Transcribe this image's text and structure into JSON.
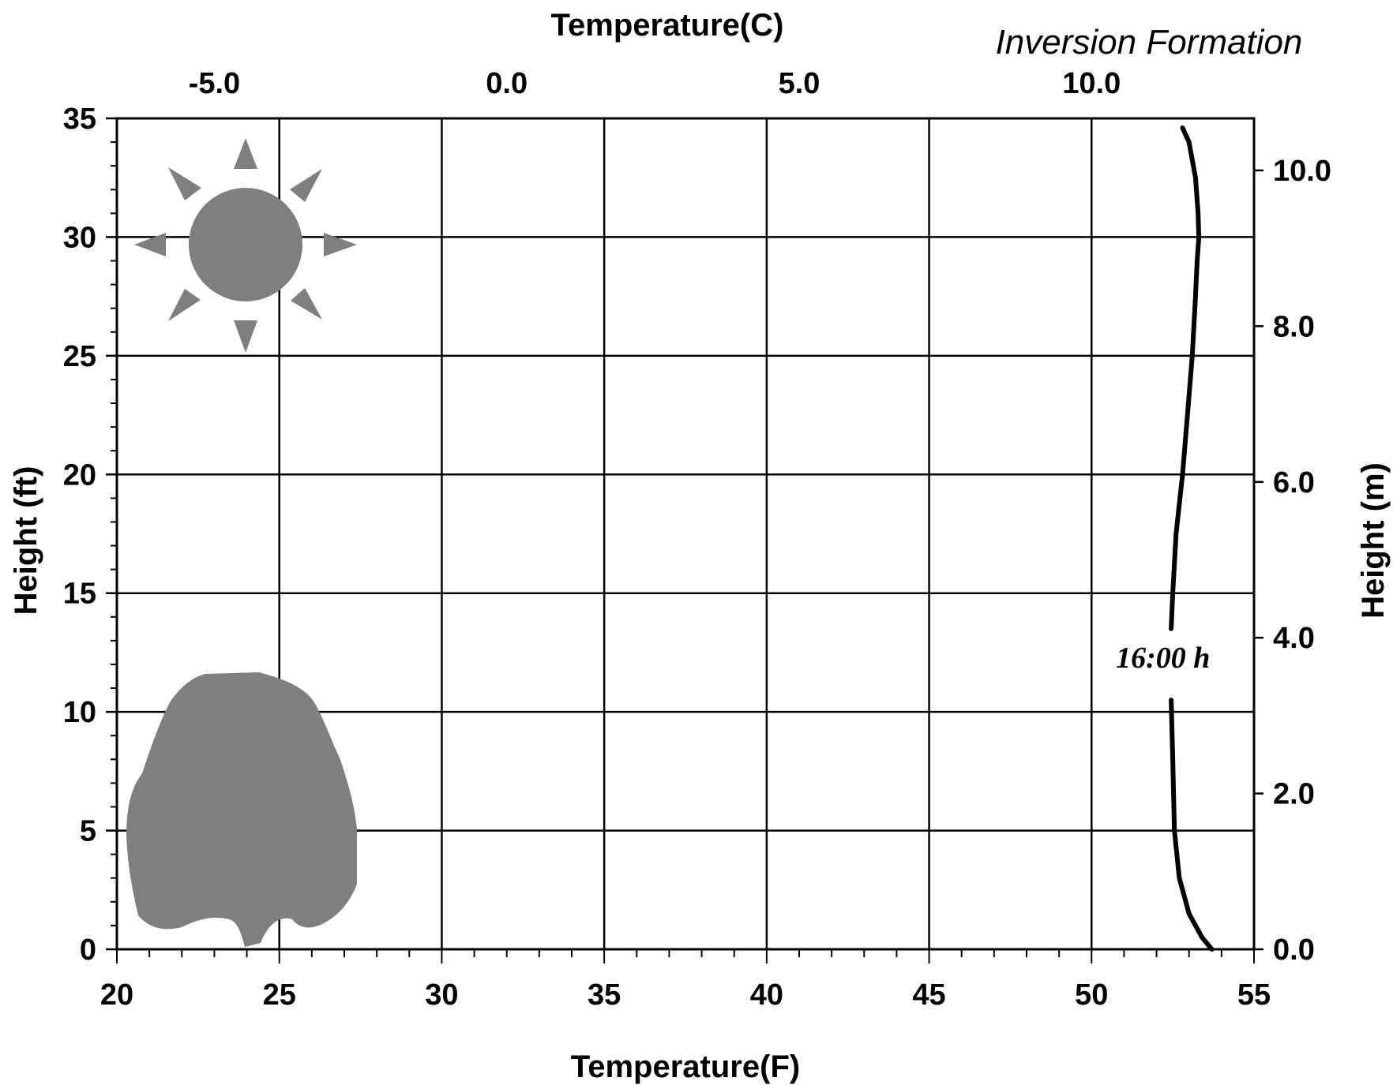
{
  "chart_data": {
    "type": "line",
    "title": "Inversion Formation",
    "xlabel": "Temperature(F)",
    "x2label": "Temperature(C)",
    "ylabel": "Height (ft)",
    "y2label": "Height (m)",
    "xlim": [
      20,
      55
    ],
    "ylim": [
      0,
      35
    ],
    "x_ticks": [
      "20",
      "25",
      "30",
      "35",
      "40",
      "45",
      "50",
      "55"
    ],
    "y_ticks": [
      "0",
      "5",
      "10",
      "15",
      "20",
      "25",
      "30",
      "35"
    ],
    "x2_ticks": [
      {
        "value": -5.0,
        "label": "-5.0"
      },
      {
        "value": 0.0,
        "label": "0.0"
      },
      {
        "value": 5.0,
        "label": "5.0"
      },
      {
        "value": 10.0,
        "label": "10.0"
      }
    ],
    "y2_ticks": [
      {
        "value": 0.0,
        "label": "0.0"
      },
      {
        "value": 2.0,
        "label": "2.0"
      },
      {
        "value": 4.0,
        "label": "4.0"
      },
      {
        "value": 6.0,
        "label": "6.0"
      },
      {
        "value": 8.0,
        "label": "8.0"
      },
      {
        "value": 10.0,
        "label": "10.0"
      }
    ],
    "grid": true,
    "series": [
      {
        "name": "16:00 h",
        "x": [
          53.7,
          53.4,
          53.0,
          52.7,
          52.55,
          52.5,
          52.45,
          52.45,
          52.5,
          52.6,
          52.8,
          52.95,
          53.1,
          53.2,
          53.25,
          53.3,
          53.28,
          53.2,
          53.0,
          52.8
        ],
        "y": [
          0,
          0.5,
          1.5,
          3.0,
          5.0,
          8.0,
          10.5,
          13.5,
          15.0,
          17.5,
          20.0,
          22.5,
          25.0,
          27.5,
          29.0,
          30.0,
          31.0,
          32.5,
          34.0,
          34.6
        ],
        "gaps_between_points": [
          [
            6,
            7
          ]
        ],
        "color": "#000000"
      }
    ],
    "annotations": [
      {
        "text": "16:00 h",
        "x": 52.2,
        "y": 12.3
      }
    ],
    "icons": [
      "sun-icon",
      "tree-icon"
    ],
    "icon_color": "#7f7f7f"
  }
}
